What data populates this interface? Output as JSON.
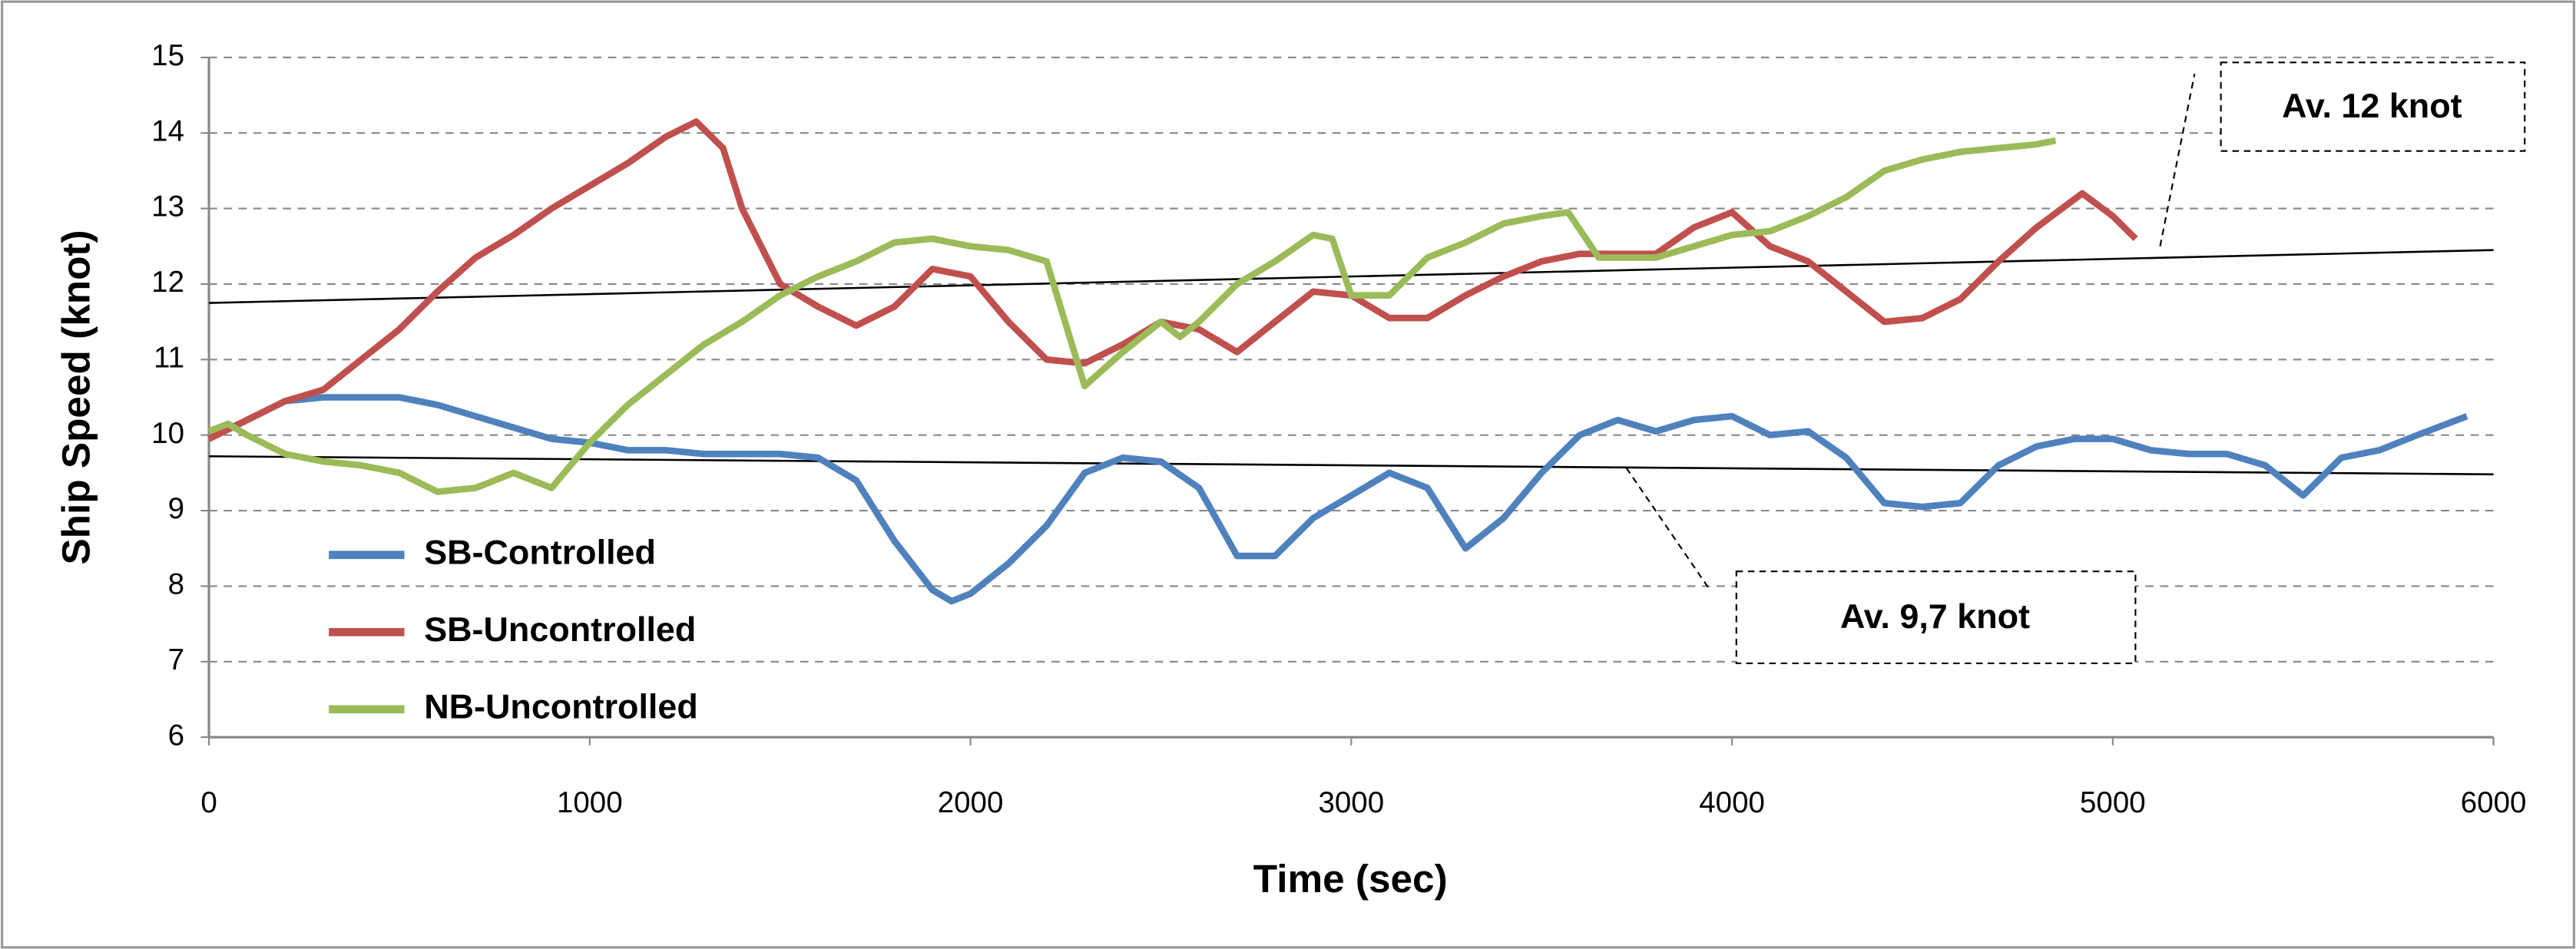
{
  "chart_data": {
    "type": "line",
    "x_label": "Time (sec)",
    "y_label": "Ship Speed (knot)",
    "xlim": [
      0,
      6000
    ],
    "xticks": [
      0,
      1000,
      2000,
      3000,
      4000,
      5000,
      6000
    ],
    "ylim": [
      6,
      15
    ],
    "yticks": [
      6,
      7,
      8,
      9,
      10,
      11,
      12,
      13,
      14,
      15
    ],
    "grid": true,
    "legend": "lower left",
    "series": [
      {
        "name": "SB-Controlled",
        "color": "#4f81bd",
        "x": [
          0,
          100,
          200,
          300,
          400,
          500,
          600,
          700,
          800,
          900,
          1000,
          1100,
          1200,
          1300,
          1400,
          1500,
          1600,
          1700,
          1800,
          1900,
          1950,
          2000,
          2100,
          2200,
          2300,
          2400,
          2500,
          2600,
          2700,
          2800,
          2900,
          3000,
          3100,
          3200,
          3300,
          3400,
          3500,
          3600,
          3700,
          3800,
          3900,
          4000,
          4100,
          4200,
          4300,
          4400,
          4500,
          4600,
          4700,
          4800,
          4900,
          5000,
          5100,
          5200,
          5300,
          5400,
          5500,
          5600,
          5700,
          5800,
          5930
        ],
        "values": [
          9.95,
          10.2,
          10.45,
          10.5,
          10.5,
          10.5,
          10.4,
          10.25,
          10.1,
          9.95,
          9.9,
          9.8,
          9.8,
          9.75,
          9.75,
          9.75,
          9.7,
          9.4,
          8.6,
          7.95,
          7.8,
          7.9,
          8.3,
          8.8,
          9.5,
          9.7,
          9.65,
          9.3,
          8.4,
          8.4,
          8.9,
          9.2,
          9.5,
          9.3,
          8.5,
          8.9,
          9.5,
          10.0,
          10.2,
          10.05,
          10.2,
          10.25,
          10.0,
          10.05,
          9.7,
          9.1,
          9.05,
          9.1,
          9.6,
          9.85,
          9.95,
          9.95,
          9.8,
          9.75,
          9.75,
          9.6,
          9.2,
          9.7,
          9.8,
          10.0,
          10.25
        ]
      },
      {
        "name": "SB-Uncontrolled",
        "color": "#c0504d",
        "x": [
          0,
          100,
          200,
          300,
          400,
          500,
          600,
          700,
          800,
          900,
          1000,
          1100,
          1200,
          1280,
          1350,
          1400,
          1500,
          1600,
          1700,
          1800,
          1900,
          2000,
          2100,
          2200,
          2300,
          2400,
          2500,
          2600,
          2700,
          2800,
          2900,
          3000,
          3100,
          3200,
          3300,
          3400,
          3500,
          3600,
          3700,
          3800,
          3900,
          4000,
          4100,
          4200,
          4300,
          4400,
          4500,
          4600,
          4700,
          4800,
          4920,
          5000,
          5060
        ],
        "values": [
          9.95,
          10.2,
          10.45,
          10.6,
          11.0,
          11.4,
          11.9,
          12.35,
          12.65,
          13.0,
          13.3,
          13.6,
          13.95,
          14.15,
          13.8,
          13.0,
          12.0,
          11.7,
          11.45,
          11.7,
          12.2,
          12.1,
          11.5,
          11.0,
          10.95,
          11.2,
          11.5,
          11.4,
          11.1,
          11.5,
          11.9,
          11.85,
          11.55,
          11.55,
          11.85,
          12.1,
          12.3,
          12.4,
          12.4,
          12.4,
          12.75,
          12.95,
          12.5,
          12.3,
          11.9,
          11.5,
          11.55,
          11.8,
          12.3,
          12.75,
          13.2,
          12.9,
          12.6
        ]
      },
      {
        "name": "NB-Uncontrolled",
        "color": "#9bbb59",
        "x": [
          0,
          50,
          100,
          200,
          300,
          400,
          500,
          600,
          700,
          800,
          900,
          1000,
          1100,
          1200,
          1300,
          1400,
          1500,
          1600,
          1700,
          1800,
          1900,
          2000,
          2100,
          2200,
          2300,
          2400,
          2500,
          2550,
          2600,
          2700,
          2800,
          2900,
          2950,
          3000,
          3100,
          3200,
          3300,
          3400,
          3500,
          3570,
          3650,
          3800,
          3900,
          4000,
          4100,
          4200,
          4300,
          4400,
          4500,
          4600,
          4700,
          4800,
          4850
        ],
        "values": [
          10.05,
          10.15,
          10.0,
          9.75,
          9.65,
          9.6,
          9.5,
          9.25,
          9.3,
          9.5,
          9.3,
          9.9,
          10.4,
          10.8,
          11.2,
          11.5,
          11.85,
          12.1,
          12.3,
          12.55,
          12.6,
          12.5,
          12.45,
          12.3,
          10.65,
          11.1,
          11.5,
          11.3,
          11.5,
          12.0,
          12.3,
          12.65,
          12.6,
          11.85,
          11.85,
          12.35,
          12.55,
          12.8,
          12.9,
          12.95,
          12.35,
          12.35,
          12.5,
          12.65,
          12.7,
          12.9,
          13.15,
          13.5,
          13.65,
          13.75,
          13.8,
          13.85,
          13.9
        ]
      }
    ],
    "annotations": [
      {
        "text": "Av. 12 knot",
        "x": [
          0,
          6000
        ],
        "values": [
          11.75,
          12.45
        ]
      },
      {
        "text": "Av. 9,7 knot",
        "x": [
          0,
          6000
        ],
        "values": [
          9.72,
          9.48
        ]
      }
    ]
  }
}
